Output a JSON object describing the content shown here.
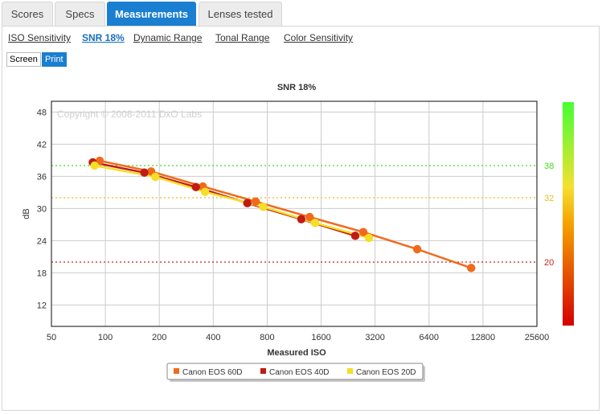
{
  "tabs": [
    {
      "label": "Scores"
    },
    {
      "label": "Specs"
    },
    {
      "label": "Measurements"
    },
    {
      "label": "Lenses tested"
    }
  ],
  "subnav": [
    {
      "label": "ISO Sensitivity"
    },
    {
      "label": "SNR 18%"
    },
    {
      "label": "Dynamic Range"
    },
    {
      "label": "Tonal Range"
    },
    {
      "label": "Color Sensitivity"
    }
  ],
  "view_toggle": {
    "screen": "Screen",
    "print": "Print"
  },
  "colors": {
    "accent": "#1a7fd0"
  },
  "chart_data": {
    "type": "line",
    "title": "SNR 18%",
    "xlabel": "Measured ISO",
    "ylabel": "dB",
    "x_scale": "log2",
    "xlim": [
      50,
      25600
    ],
    "ylim": [
      8,
      50
    ],
    "x_ticks": [
      50,
      100,
      200,
      400,
      800,
      1600,
      3200,
      6400,
      12800,
      25600
    ],
    "y_ticks": [
      12,
      18,
      24,
      30,
      36,
      42,
      48
    ],
    "grid": true,
    "watermark": "Copyright © 2008-2011 DxO Labs",
    "reference_lines": [
      {
        "value": 38,
        "label": "38",
        "color": "#44dd22"
      },
      {
        "value": 32,
        "label": "32",
        "color": "#e8c020"
      },
      {
        "value": 20,
        "label": "20",
        "color": "#cc2222"
      }
    ],
    "legend_position": "bottom-center",
    "series": [
      {
        "name": "Canon EOS 60D",
        "color": "#f06a1c",
        "points": [
          [
            93,
            38.9
          ],
          [
            180,
            36.9
          ],
          [
            350,
            34.1
          ],
          [
            690,
            31.3
          ],
          [
            1380,
            28.4
          ],
          [
            2750,
            25.6
          ],
          [
            5500,
            22.4
          ],
          [
            11000,
            18.9
          ]
        ]
      },
      {
        "name": "Canon EOS 40D",
        "color": "#c01c12",
        "points": [
          [
            85,
            38.6
          ],
          [
            165,
            36.7
          ],
          [
            320,
            34.0
          ],
          [
            620,
            31.0
          ],
          [
            1240,
            28.0
          ],
          [
            2480,
            24.9
          ]
        ]
      },
      {
        "name": "Canon EOS 20D",
        "color": "#f5de26",
        "points": [
          [
            87,
            38.0
          ],
          [
            190,
            35.9
          ],
          [
            360,
            33.1
          ],
          [
            760,
            30.3
          ],
          [
            1480,
            27.3
          ],
          [
            2960,
            24.5
          ]
        ]
      }
    ]
  }
}
